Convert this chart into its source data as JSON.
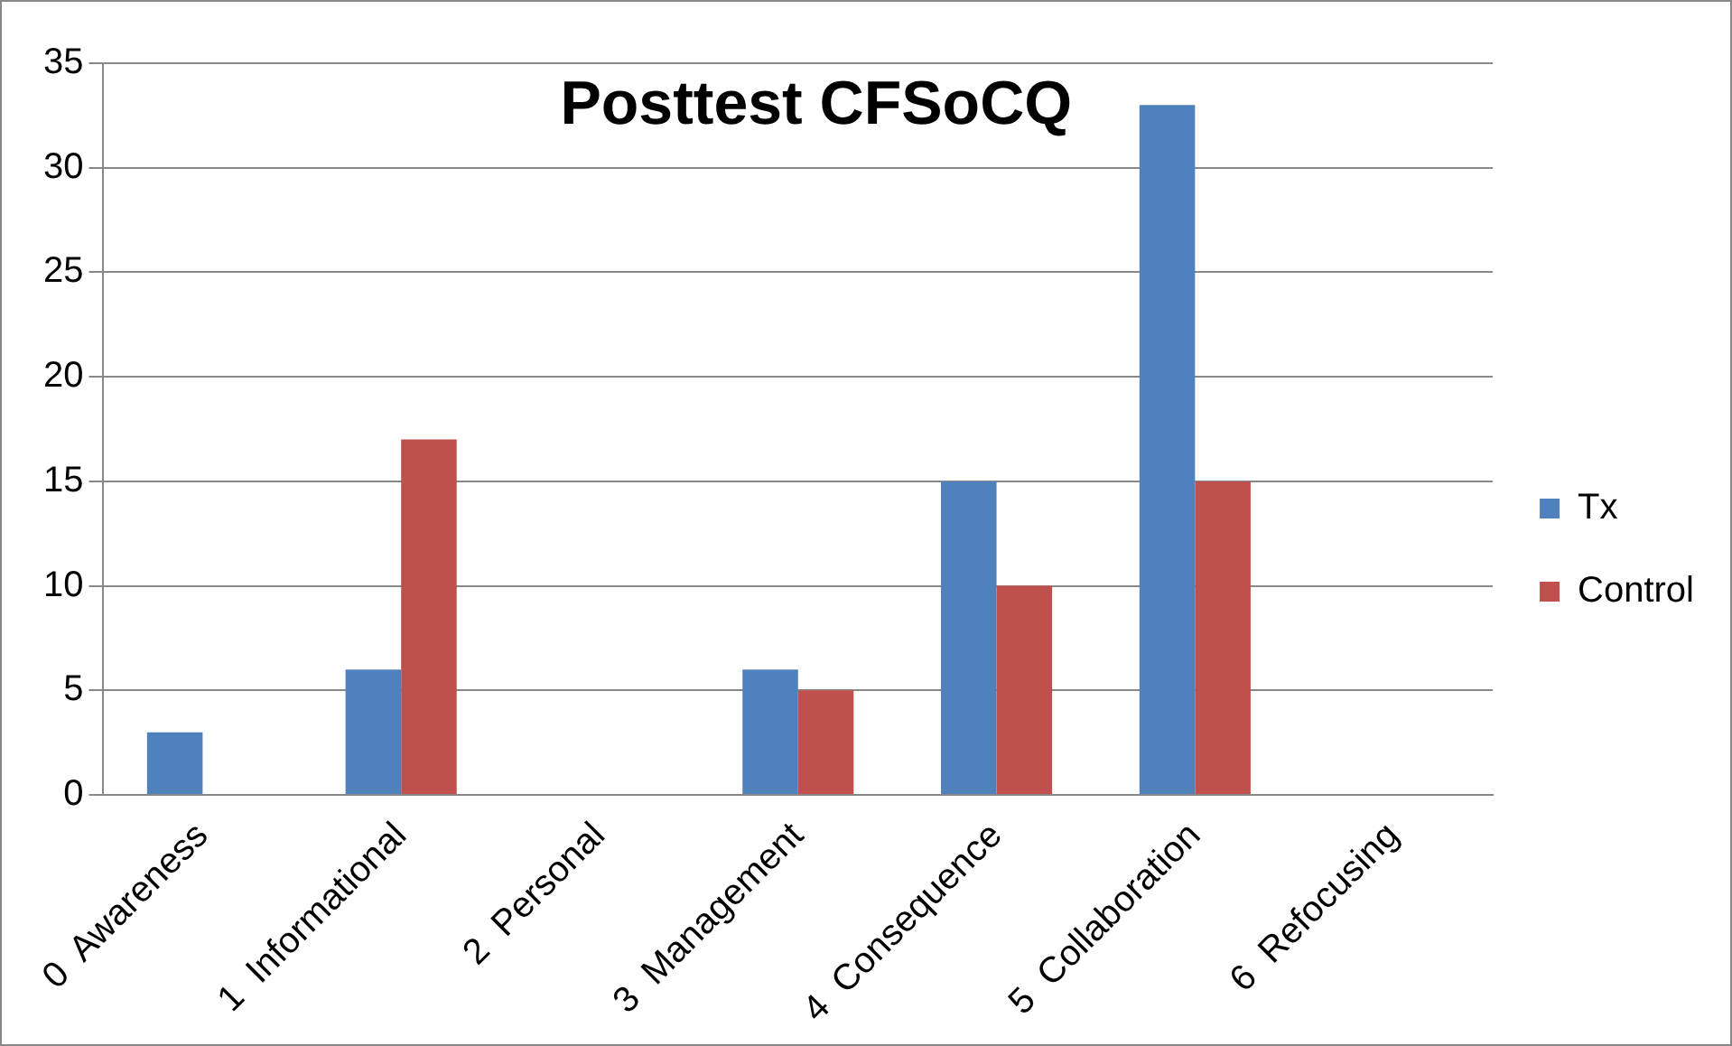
{
  "chart_data": {
    "type": "bar",
    "title": "Posttest CFSoCQ",
    "categories": [
      "0  Awareness",
      "1  Informational",
      "2  Personal",
      "3  Management",
      "4  Consequence",
      "5  Collaboration",
      "6  Refocusing"
    ],
    "series": [
      {
        "name": "Tx",
        "color": "#4f81bd",
        "values": [
          3,
          6,
          0,
          6,
          15,
          33,
          0
        ]
      },
      {
        "name": "Control",
        "color": "#c0504d",
        "values": [
          0,
          17,
          0,
          5,
          10,
          15,
          0
        ]
      }
    ],
    "ylim": [
      0,
      35
    ],
    "yticks": [
      0,
      5,
      10,
      15,
      20,
      25,
      30,
      35
    ],
    "grid": "y",
    "legend": "right"
  }
}
